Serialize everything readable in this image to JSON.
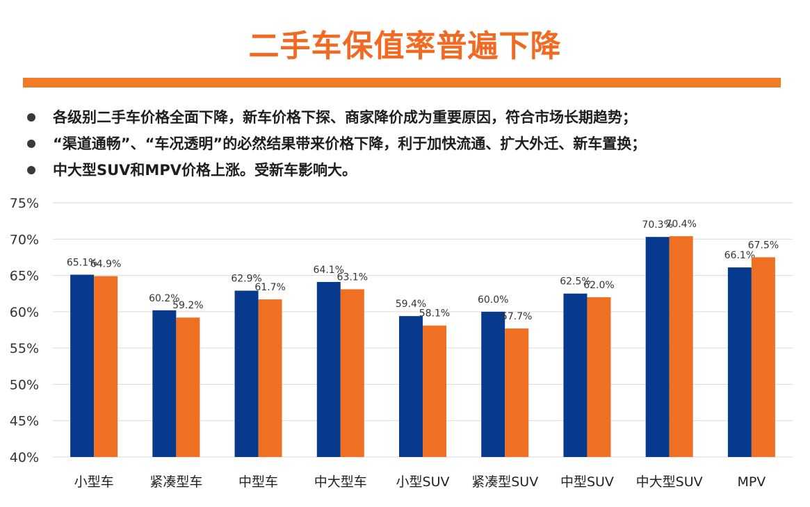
{
  "title": "二手车保值率普遍下降",
  "bullets": [
    "各级别二手车价格全面下降，新车价格下探、商家降价成为重要原因，符合市场长期趋势；",
    "“渠道通畅”、“车况透明”的必然结果带来价格下降，利于加快流通、扩大外迁、新车置换；",
    "中大型SUV和MPV价格上涨。受新车影响大。"
  ],
  "colors": {
    "accent": "#f26a21",
    "series1": "#073a8c",
    "series2": "#f07023",
    "grid": "#d9d9d9"
  },
  "chart_data": {
    "type": "bar",
    "title": "",
    "xlabel": "",
    "ylabel": "",
    "ylim": [
      40,
      75
    ],
    "yticks": [
      "40%",
      "45%",
      "50%",
      "55%",
      "60%",
      "65%",
      "70%",
      "75%"
    ],
    "yticks_values": [
      40,
      45,
      50,
      55,
      60,
      65,
      70,
      75
    ],
    "grid": true,
    "categories": [
      "小型车",
      "紧凑型车",
      "中型车",
      "中大型车",
      "小型SUV",
      "紧凑型SUV",
      "中型SUV",
      "中大型SUV",
      "MPV"
    ],
    "series": [
      {
        "name": "series-1",
        "values": [
          65.1,
          60.2,
          62.9,
          64.1,
          59.4,
          60.0,
          62.5,
          70.3,
          66.1
        ],
        "labels": [
          "65.1%",
          "60.2%",
          "62.9%",
          "64.1%",
          "59.4%",
          "60.0%",
          "62.5%",
          "70.3%",
          "66.1%"
        ]
      },
      {
        "name": "series-2",
        "values": [
          64.9,
          59.2,
          61.7,
          63.1,
          58.1,
          57.7,
          62.0,
          70.4,
          67.5
        ],
        "labels": [
          "64.9%",
          "59.2%",
          "61.7%",
          "63.1%",
          "58.1%",
          "57.7%",
          "62.0%",
          "70.4%",
          "67.5%"
        ]
      }
    ]
  }
}
